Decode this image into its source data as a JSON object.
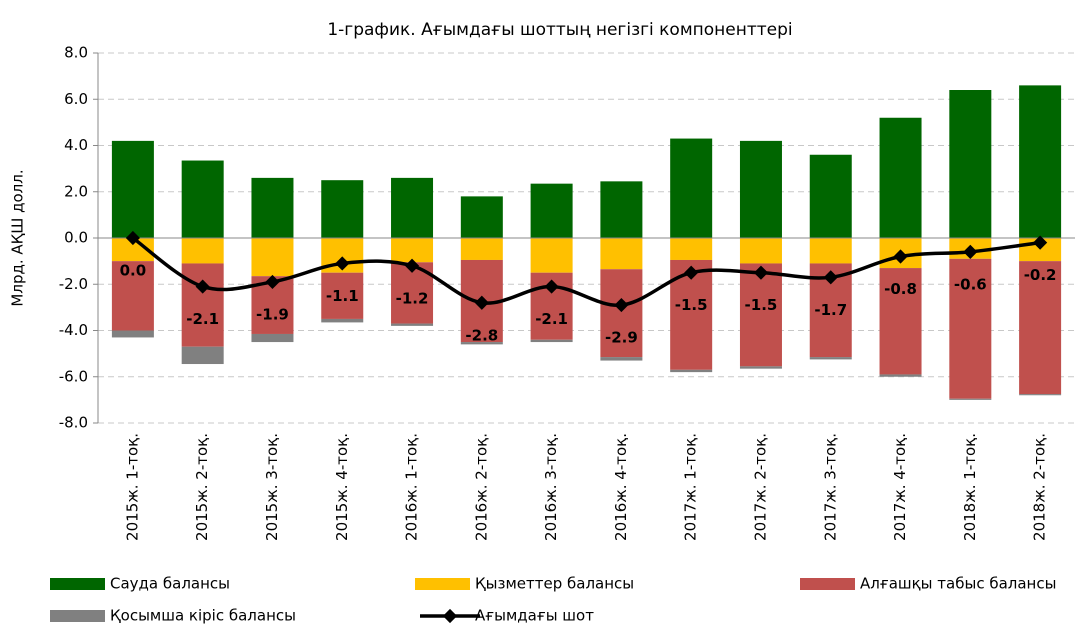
{
  "chart_data": {
    "type": "stacked-bar-line",
    "title": "1-график. Ағымдағы шоттың негізгі компоненттері",
    "y_label": "Млрд. АҚШ долл.",
    "categories": [
      "2015ж. 1-тоқ.",
      "2015ж. 2-тоқ.",
      "2015ж. 3-тоқ.",
      "2015ж. 4-тоқ.",
      "2016ж. 1-тоқ.",
      "2016ж. 2-тоқ.",
      "2016ж. 3-тоқ.",
      "2016ж. 4-тоқ.",
      "2017ж. 1-тоқ.",
      "2017ж. 2-тоқ.",
      "2017ж. 3-тоқ.",
      "2017ж. 4-тоқ.",
      "2018ж. 1-тоқ.",
      "2018ж. 2-тоқ."
    ],
    "series": [
      {
        "name": "Сауда балансы",
        "color": "#006600",
        "values": [
          4.2,
          3.35,
          2.6,
          2.5,
          2.6,
          1.8,
          2.35,
          2.45,
          4.3,
          4.2,
          3.6,
          5.2,
          6.4,
          6.6
        ]
      },
      {
        "name": "Қызметтер балансы",
        "color": "#ffc000",
        "values": [
          -1.0,
          -1.1,
          -1.65,
          -1.5,
          -1.05,
          -0.95,
          -1.5,
          -1.35,
          -0.95,
          -1.1,
          -1.1,
          -1.3,
          -0.9,
          -1.0
        ]
      },
      {
        "name": "Алғашқы табыс  балансы",
        "color": "#c0504d",
        "values": [
          -3.0,
          -3.6,
          -2.5,
          -2.0,
          -2.65,
          -3.55,
          -2.9,
          -3.8,
          -4.75,
          -4.45,
          -4.05,
          -4.6,
          -6.05,
          -5.75
        ]
      },
      {
        "name": "Қосымша кіріс  балансы",
        "color": "#808080",
        "values": [
          -0.3,
          -0.75,
          -0.35,
          -0.15,
          -0.1,
          -0.1,
          -0.1,
          -0.15,
          -0.1,
          -0.1,
          -0.1,
          -0.1,
          -0.05,
          -0.05
        ]
      },
      {
        "name": "Ағымдағы шот",
        "color": "#000000",
        "line": true,
        "values": [
          0,
          -2.1,
          -1.9,
          -1.1,
          -1.2,
          -2.8,
          -2.1,
          -2.9,
          -1.5,
          -1.5,
          -1.7,
          -0.8,
          -0.6,
          -0.2
        ],
        "value_labels": [
          "0.0",
          "-2.1",
          "-1.9",
          "-1.1",
          "-1.2",
          "-2.8",
          "-2.1",
          "-2.9",
          "-1.5",
          "-1.5",
          "-1.7",
          "-0.8",
          "-0.6",
          "-0.2"
        ]
      }
    ],
    "ylim": [
      -8,
      8
    ],
    "yticks": [
      {
        "value": -8,
        "label": "-8.0"
      },
      {
        "value": -6,
        "label": "-6.0"
      },
      {
        "value": -4,
        "label": "-4.0"
      },
      {
        "value": -2,
        "label": "-2.0"
      },
      {
        "value": 0,
        "label": "0.0"
      },
      {
        "value": 2,
        "label": "2.0"
      },
      {
        "value": 4,
        "label": "4.0"
      },
      {
        "value": 6,
        "label": "6.0"
      },
      {
        "value": 8,
        "label": "8.0"
      }
    ],
    "grid": true
  }
}
